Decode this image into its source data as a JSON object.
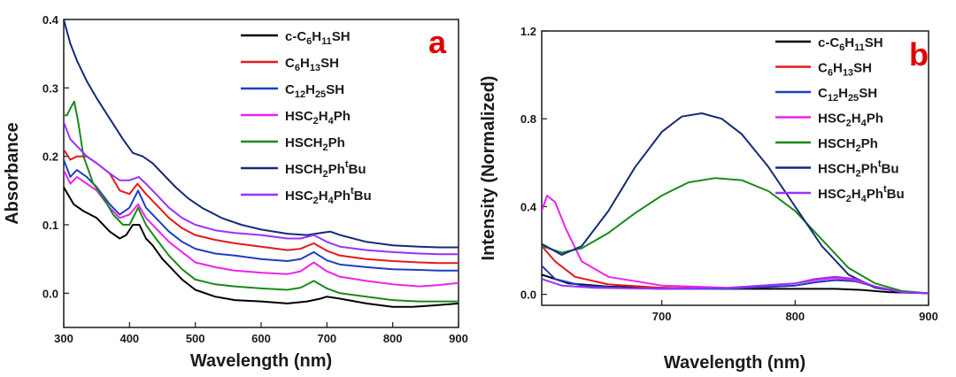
{
  "chart_data": [
    {
      "type": "line",
      "panel_label": "a",
      "xlabel": "Wavelength (nm)",
      "ylabel": "Absorbance",
      "xlim": [
        300,
        900
      ],
      "ylim": [
        -0.05,
        0.4
      ],
      "xticks": [
        "300",
        "400",
        "500",
        "600",
        "700",
        "800",
        "900"
      ],
      "yticks": [
        "0.0",
        "0.1",
        "0.2",
        "0.3",
        "0.4"
      ],
      "legend_position": "top-right",
      "series": [
        {
          "name": "c-C6H11SH",
          "label_parts": [
            [
              "c-C",
              ""
            ],
            [
              "6",
              "sub"
            ],
            [
              "H",
              ""
            ],
            [
              "11",
              "sub"
            ],
            [
              "SH",
              ""
            ]
          ],
          "color": "#000000",
          "x": [
            300,
            315,
            330,
            350,
            370,
            385,
            395,
            405,
            415,
            425,
            435,
            450,
            465,
            480,
            500,
            530,
            560,
            600,
            640,
            670,
            690,
            700,
            720,
            760,
            800,
            830,
            860,
            900
          ],
          "y": [
            0.155,
            0.13,
            0.12,
            0.11,
            0.09,
            0.08,
            0.085,
            0.1,
            0.1,
            0.08,
            0.07,
            0.05,
            0.035,
            0.02,
            0.005,
            -0.005,
            -0.01,
            -0.012,
            -0.015,
            -0.012,
            -0.008,
            -0.005,
            -0.008,
            -0.015,
            -0.02,
            -0.02,
            -0.018,
            -0.015
          ]
        },
        {
          "name": "C6H13SH",
          "label_parts": [
            [
              "C",
              ""
            ],
            [
              "6",
              "sub"
            ],
            [
              "H",
              ""
            ],
            [
              "13",
              "sub"
            ],
            [
              "SH",
              ""
            ]
          ],
          "color": "#e31a1c",
          "x": [
            300,
            310,
            320,
            335,
            350,
            370,
            385,
            400,
            412,
            425,
            440,
            460,
            480,
            500,
            530,
            560,
            600,
            640,
            660,
            680,
            700,
            720,
            760,
            800,
            840,
            870,
            900
          ],
          "y": [
            0.21,
            0.195,
            0.2,
            0.2,
            0.19,
            0.175,
            0.15,
            0.145,
            0.16,
            0.145,
            0.13,
            0.11,
            0.095,
            0.085,
            0.078,
            0.073,
            0.068,
            0.063,
            0.065,
            0.073,
            0.062,
            0.055,
            0.05,
            0.047,
            0.045,
            0.044,
            0.044
          ]
        },
        {
          "name": "C12H25SH",
          "label_parts": [
            [
              "C",
              ""
            ],
            [
              "12",
              "sub"
            ],
            [
              "H",
              ""
            ],
            [
              "25",
              "sub"
            ],
            [
              "SH",
              ""
            ]
          ],
          "color": "#1f3fbf",
          "x": [
            300,
            310,
            320,
            335,
            350,
            370,
            385,
            400,
            413,
            425,
            440,
            460,
            480,
            500,
            530,
            560,
            600,
            640,
            660,
            680,
            700,
            720,
            760,
            800,
            840,
            870,
            900
          ],
          "y": [
            0.195,
            0.17,
            0.18,
            0.17,
            0.155,
            0.13,
            0.115,
            0.125,
            0.15,
            0.125,
            0.11,
            0.09,
            0.075,
            0.065,
            0.058,
            0.055,
            0.05,
            0.047,
            0.05,
            0.06,
            0.048,
            0.042,
            0.038,
            0.035,
            0.034,
            0.033,
            0.033
          ]
        },
        {
          "name": "HSC2H4Ph",
          "label_parts": [
            [
              "HSC",
              ""
            ],
            [
              "2",
              "sub"
            ],
            [
              "H",
              ""
            ],
            [
              "4",
              "sub"
            ],
            [
              "Ph",
              ""
            ]
          ],
          "color": "#ee22ee",
          "x": [
            300,
            310,
            320,
            335,
            350,
            370,
            385,
            400,
            413,
            425,
            440,
            460,
            480,
            500,
            530,
            560,
            600,
            640,
            660,
            680,
            700,
            720,
            760,
            800,
            840,
            870,
            900
          ],
          "y": [
            0.18,
            0.16,
            0.17,
            0.16,
            0.15,
            0.125,
            0.11,
            0.115,
            0.13,
            0.11,
            0.095,
            0.075,
            0.06,
            0.045,
            0.038,
            0.033,
            0.03,
            0.028,
            0.032,
            0.045,
            0.032,
            0.024,
            0.018,
            0.013,
            0.01,
            0.012,
            0.015
          ]
        },
        {
          "name": "HSCH2Ph",
          "label_parts": [
            [
              "HSCH",
              ""
            ],
            [
              "2",
              "sub"
            ],
            [
              "Ph",
              ""
            ]
          ],
          "color": "#1a8a1a",
          "x": [
            300,
            305,
            310,
            316,
            322,
            330,
            345,
            360,
            375,
            390,
            400,
            413,
            425,
            440,
            460,
            480,
            500,
            530,
            560,
            600,
            640,
            660,
            680,
            700,
            720,
            760,
            800,
            840,
            870,
            900
          ],
          "y": [
            0.26,
            0.26,
            0.27,
            0.28,
            0.25,
            0.2,
            0.16,
            0.14,
            0.115,
            0.1,
            0.1,
            0.125,
            0.1,
            0.08,
            0.055,
            0.035,
            0.02,
            0.013,
            0.01,
            0.007,
            0.005,
            0.008,
            0.018,
            0.007,
            0.0,
            -0.005,
            -0.01,
            -0.012,
            -0.012,
            -0.012
          ]
        },
        {
          "name": "HSCH2PhtBu",
          "label_parts": [
            [
              "HSCH",
              ""
            ],
            [
              "2",
              "sub"
            ],
            [
              "Ph",
              ""
            ],
            [
              "t",
              "sup"
            ],
            [
              "Bu",
              ""
            ]
          ],
          "color": "#152a7a",
          "x": [
            300,
            310,
            320,
            335,
            350,
            370,
            390,
            405,
            420,
            435,
            450,
            470,
            490,
            510,
            540,
            570,
            600,
            640,
            670,
            690,
            705,
            720,
            760,
            800,
            840,
            870,
            900
          ],
          "y": [
            0.4,
            0.365,
            0.34,
            0.31,
            0.285,
            0.255,
            0.225,
            0.205,
            0.2,
            0.19,
            0.175,
            0.155,
            0.138,
            0.125,
            0.11,
            0.1,
            0.093,
            0.087,
            0.085,
            0.088,
            0.09,
            0.085,
            0.075,
            0.07,
            0.068,
            0.067,
            0.067
          ]
        },
        {
          "name": "HSC2H4PhtBu",
          "label_parts": [
            [
              "HSC",
              ""
            ],
            [
              "2",
              "sub"
            ],
            [
              "H",
              ""
            ],
            [
              "4",
              "sub"
            ],
            [
              "Ph",
              ""
            ],
            [
              "t",
              "sup"
            ],
            [
              "Bu",
              ""
            ]
          ],
          "color": "#9b30ff",
          "x": [
            300,
            310,
            320,
            335,
            350,
            370,
            385,
            400,
            414,
            425,
            440,
            460,
            480,
            500,
            530,
            560,
            600,
            640,
            660,
            680,
            700,
            720,
            760,
            800,
            840,
            870,
            900
          ],
          "y": [
            0.25,
            0.225,
            0.215,
            0.2,
            0.19,
            0.175,
            0.165,
            0.165,
            0.17,
            0.16,
            0.145,
            0.125,
            0.11,
            0.1,
            0.092,
            0.088,
            0.085,
            0.08,
            0.08,
            0.085,
            0.075,
            0.068,
            0.063,
            0.06,
            0.058,
            0.057,
            0.057
          ]
        }
      ]
    },
    {
      "type": "line",
      "panel_label": "b",
      "xlabel": "Wavelength (nm)",
      "ylabel": "Intensity (Normalized)",
      "xlim": [
        610,
        900
      ],
      "ylim": [
        -0.05,
        1.2
      ],
      "xticks": [
        "700",
        "800",
        "900"
      ],
      "yticks": [
        "0.0",
        "0.4",
        "0.8",
        "1.2"
      ],
      "legend_position": "top-right",
      "series": [
        {
          "name": "c-C6H11SH",
          "label_parts": [
            [
              "c-C",
              ""
            ],
            [
              "6",
              "sub"
            ],
            [
              "H",
              ""
            ],
            [
              "11",
              "sub"
            ],
            [
              "SH",
              ""
            ]
          ],
          "color": "#000000",
          "x": [
            610,
            630,
            660,
            700,
            750,
            800,
            830,
            850,
            870,
            900
          ],
          "y": [
            0.09,
            0.05,
            0.035,
            0.03,
            0.025,
            0.025,
            0.025,
            0.02,
            0.01,
            0.005
          ]
        },
        {
          "name": "C6H13SH",
          "label_parts": [
            [
              "C",
              ""
            ],
            [
              "6",
              "sub"
            ],
            [
              "H",
              ""
            ],
            [
              "13",
              "sub"
            ],
            [
              "SH",
              ""
            ]
          ],
          "color": "#e31a1c",
          "x": [
            610,
            620,
            635,
            660,
            700,
            750,
            800,
            815,
            830,
            845,
            860,
            880,
            900
          ],
          "y": [
            0.22,
            0.15,
            0.08,
            0.045,
            0.03,
            0.025,
            0.04,
            0.055,
            0.065,
            0.06,
            0.035,
            0.01,
            0.005
          ]
        },
        {
          "name": "C12H25SH",
          "label_parts": [
            [
              "C",
              ""
            ],
            [
              "12",
              "sub"
            ],
            [
              "H",
              ""
            ],
            [
              "25",
              "sub"
            ],
            [
              "SH",
              ""
            ]
          ],
          "color": "#1f3fbf",
          "x": [
            610,
            620,
            640,
            670,
            700,
            750,
            800,
            815,
            830,
            845,
            860,
            880,
            900
          ],
          "y": [
            0.13,
            0.07,
            0.04,
            0.03,
            0.025,
            0.025,
            0.04,
            0.055,
            0.065,
            0.06,
            0.035,
            0.01,
            0.005
          ]
        },
        {
          "name": "HSC2H4Ph",
          "label_parts": [
            [
              "HSC",
              ""
            ],
            [
              "2",
              "sub"
            ],
            [
              "H",
              ""
            ],
            [
              "4",
              "sub"
            ],
            [
              "Ph",
              ""
            ]
          ],
          "color": "#ee22ee",
          "x": [
            610,
            614,
            620,
            628,
            640,
            660,
            680,
            700,
            750,
            800,
            815,
            830,
            845,
            860,
            880,
            900
          ],
          "y": [
            0.38,
            0.45,
            0.42,
            0.3,
            0.15,
            0.08,
            0.06,
            0.04,
            0.03,
            0.05,
            0.065,
            0.075,
            0.065,
            0.035,
            0.01,
            0.005
          ]
        },
        {
          "name": "HSCH2Ph",
          "label_parts": [
            [
              "HSCH",
              ""
            ],
            [
              "2",
              "sub"
            ],
            [
              "Ph",
              ""
            ]
          ],
          "color": "#1a8a1a",
          "x": [
            610,
            625,
            640,
            660,
            680,
            700,
            720,
            740,
            760,
            780,
            800,
            820,
            840,
            860,
            880,
            900
          ],
          "y": [
            0.22,
            0.19,
            0.21,
            0.28,
            0.37,
            0.45,
            0.51,
            0.53,
            0.52,
            0.47,
            0.38,
            0.25,
            0.12,
            0.05,
            0.015,
            0.005
          ]
        },
        {
          "name": "HSCH2PhtBu",
          "label_parts": [
            [
              "HSCH",
              ""
            ],
            [
              "2",
              "sub"
            ],
            [
              "Ph",
              ""
            ],
            [
              "t",
              "sup"
            ],
            [
              "Bu",
              ""
            ]
          ],
          "color": "#152a7a",
          "x": [
            610,
            625,
            640,
            660,
            680,
            700,
            715,
            730,
            745,
            760,
            780,
            800,
            820,
            840,
            860,
            880,
            900
          ],
          "y": [
            0.23,
            0.18,
            0.22,
            0.38,
            0.58,
            0.74,
            0.81,
            0.825,
            0.8,
            0.73,
            0.58,
            0.4,
            0.22,
            0.09,
            0.03,
            0.01,
            0.005
          ]
        },
        {
          "name": "HSC2H4PhtBu",
          "label_parts": [
            [
              "HSC",
              ""
            ],
            [
              "2",
              "sub"
            ],
            [
              "H",
              ""
            ],
            [
              "4",
              "sub"
            ],
            [
              "Ph",
              ""
            ],
            [
              "t",
              "sup"
            ],
            [
              "Bu",
              ""
            ]
          ],
          "color": "#9b30ff",
          "x": [
            610,
            625,
            650,
            700,
            750,
            800,
            815,
            830,
            845,
            860,
            880,
            900
          ],
          "y": [
            0.07,
            0.04,
            0.03,
            0.025,
            0.03,
            0.05,
            0.07,
            0.08,
            0.07,
            0.035,
            0.01,
            0.005
          ]
        }
      ]
    }
  ]
}
